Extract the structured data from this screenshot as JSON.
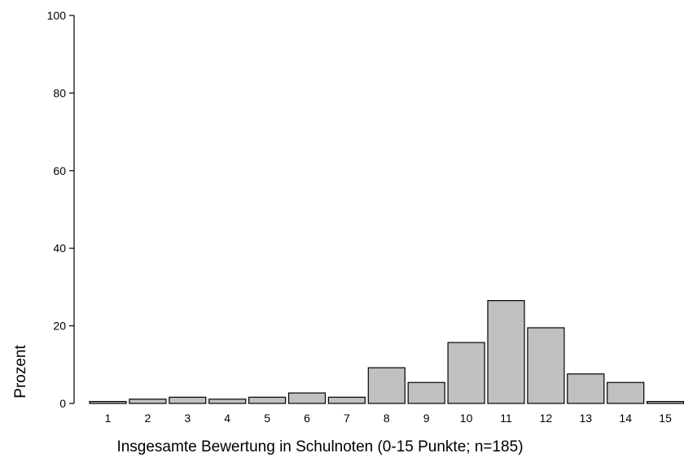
{
  "chart_data": {
    "type": "bar",
    "categories": [
      "1",
      "2",
      "3",
      "4",
      "5",
      "6",
      "7",
      "8",
      "9",
      "10",
      "11",
      "12",
      "13",
      "14",
      "15"
    ],
    "values": [
      0.5,
      1.1,
      1.6,
      1.1,
      1.6,
      2.7,
      1.6,
      9.2,
      5.4,
      15.7,
      26.5,
      19.5,
      7.6,
      5.4,
      0.5
    ],
    "title": "",
    "xlabel": "Insgesamte Bewertung in Schulnoten (0-15 Punkte; n=185)",
    "ylabel": "Prozent",
    "ylim": [
      0,
      100
    ],
    "yticks": [
      "0",
      "20",
      "40",
      "60",
      "80",
      "100"
    ],
    "grid": false,
    "colors": {
      "bar_fill": "#c0c0c0",
      "bar_stroke": "#000000"
    }
  }
}
